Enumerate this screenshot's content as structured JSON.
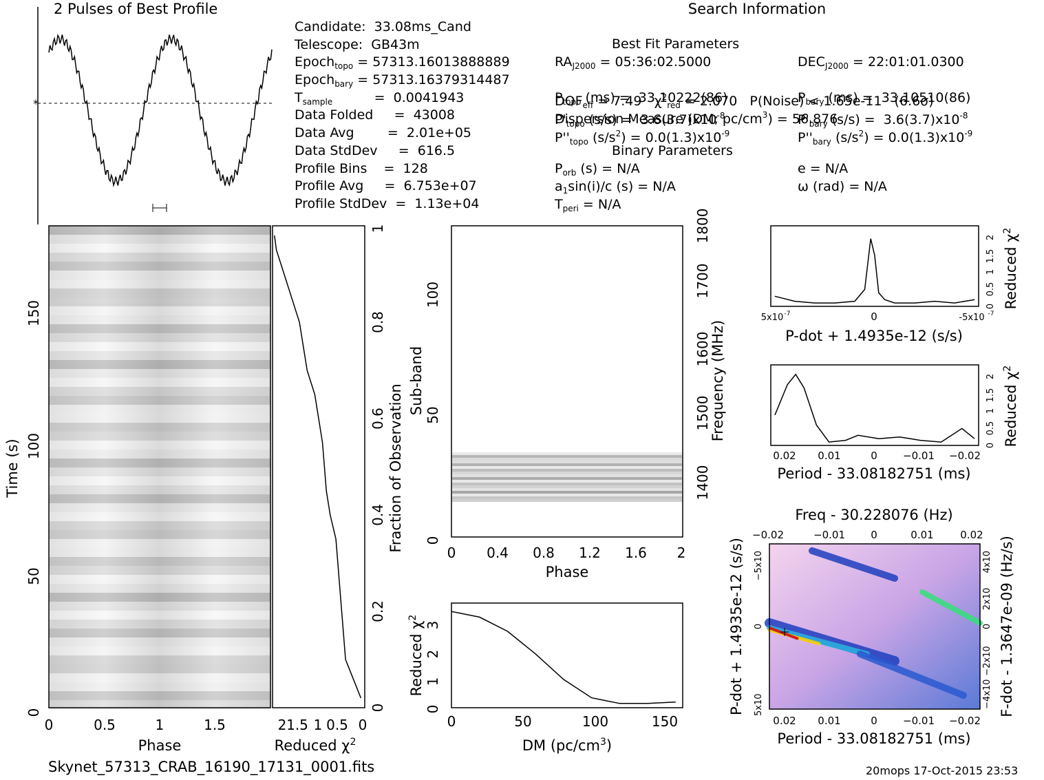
{
  "profile_title": "2 Pulses of Best Profile",
  "search_info_title": "Search Information",
  "best_fit_title": "Best Fit Parameters",
  "binary_title": "Binary Parameters",
  "left_info": [
    [
      "Candidate:  33.08ms_Cand"
    ],
    [
      "Telescope:  GB43m"
    ],
    [
      "Epoch",
      "topo",
      " = 57313.16013888889"
    ],
    [
      "Epoch",
      "bary",
      " = 57313.16379314487"
    ],
    [
      "T",
      "sample",
      "          =  0.0041943"
    ],
    [
      "Data Folded     =  43008"
    ],
    [
      "Data Avg        =  2.01e+05"
    ],
    [
      "Data StdDev     =  616.5"
    ],
    [
      "Profile Bins    =  128"
    ],
    [
      "Profile Avg     =  6.753e+07"
    ],
    [
      "Profile StdDev  =  1.13e+04"
    ]
  ],
  "ra": "RA",
  "ra_sub": "J2000",
  "ra_val": " = 05:36:02.5000",
  "dec": "DEC",
  "dec_sub": "J2000",
  "dec_val": " = 22:01:01.0300",
  "dof_line": "DOF",
  "dof_sub": "eff",
  "dof_val": " = 7.49   χ",
  "chi_sup": "2",
  "chi_sub": "red",
  "chi_val": " = 2.070   P(Noise) < 1.65e-11   (6.6σ)",
  "dm_line": "Dispersion Measure (DM; pc/cm",
  "dm_sup": "3",
  "dm_val": ") = 56.876",
  "ptopo": [
    "P",
    "topo",
    " (ms) =  33.10222(86)"
  ],
  "pbary": [
    "P",
    "bary",
    " (ms) =  33.10510(86)"
  ],
  "pdtopo": [
    "P'",
    "topo",
    " (s/s) =  3.6(3.7)x10",
    "-8"
  ],
  "pdbary": [
    "P'",
    "bary",
    " (s/s) =  3.6(3.7)x10",
    "-8"
  ],
  "pddtopo": [
    "P''",
    "topo",
    " (s/s",
    "2",
    ") = 0.0(1.3)x10",
    "-9"
  ],
  "pddbary": [
    "P''",
    "bary",
    " (s/s",
    "2",
    ") = 0.0(1.3)x10",
    "-9"
  ],
  "porb": [
    "P",
    "orb",
    " (s) = N/A"
  ],
  "ecc": "e = N/A",
  "a1": [
    "a",
    "1",
    "sin(i)/c (s) = N/A"
  ],
  "omega": "ω (rad) = N/A",
  "tperi": [
    "T",
    "peri",
    " = N/A"
  ],
  "footer_left": "Skynet_57313_CRAB_16190_17131_0001.fits",
  "footer_right": "20mops 17-Oct-2015 23:53",
  "labels": {
    "time_axis": "Time (s)",
    "phase": "Phase",
    "reduced_chi2": "Reduced χ",
    "chi2_sup": "2",
    "fraction_obs": "Fraction of Observation",
    "sub_band": "Sub-band",
    "frequency": "Frequency (MHz)",
    "dm_axis": "DM (pc/cm",
    "pdot_axis": "P-dot + 1.4935e-12 (s/s)",
    "period_axis": "Period - 33.08182751 (ms)",
    "freq_axis": "Freq - 30.228076 (Hz)",
    "fdot_axis": "F-dot - 1.3647e-09 (Hz/s)"
  },
  "chart_data": [
    {
      "type": "line",
      "title": "2 Pulses of Best Profile",
      "x": [
        0,
        0.1,
        0.2,
        0.3,
        0.4,
        0.5,
        0.6,
        0.7,
        0.8,
        0.9,
        1.0,
        1.1,
        1.2,
        1.3,
        1.4,
        1.5,
        1.6,
        1.7,
        1.8,
        1.9,
        2.0
      ],
      "values": [
        0.75,
        0.95,
        0.9,
        0.7,
        0.35,
        0.1,
        0.0,
        0.08,
        0.35,
        0.72,
        0.76,
        0.96,
        0.9,
        0.7,
        0.35,
        0.1,
        0.0,
        0.08,
        0.35,
        0.72,
        0.76
      ]
    },
    {
      "type": "line",
      "name": "reduced chi2 vs fraction of observation",
      "xlabel": "Reduced χ2",
      "ylabel": "Fraction of Observation",
      "xlim": [
        2.4,
        0
      ],
      "ylim": [
        0,
        1
      ],
      "x": [
        0.1,
        0.5,
        0.6,
        0.7,
        0.75,
        0.9,
        1.0,
        1.05,
        1.1,
        1.2,
        1.3,
        1.5,
        1.7,
        2.1,
        2.3,
        2.35
      ],
      "y": [
        0.02,
        0.1,
        0.2,
        0.3,
        0.35,
        0.4,
        0.45,
        0.5,
        0.55,
        0.6,
        0.65,
        0.7,
        0.8,
        0.9,
        0.95,
        0.98
      ]
    },
    {
      "type": "line",
      "xlabel": "DM (pc/cm3)",
      "ylabel": "Reduced χ2",
      "xlim": [
        0,
        160
      ],
      "ylim": [
        0,
        3.6
      ],
      "x": [
        0,
        20,
        40,
        60,
        80,
        100,
        120,
        140,
        160
      ],
      "y": [
        3.4,
        3.2,
        2.7,
        1.9,
        1.0,
        0.35,
        0.15,
        0.15,
        0.2
      ]
    },
    {
      "type": "line",
      "xlabel": "P-dot + 1.4935e-12 (s/s)",
      "ylabel": "Reduced χ2",
      "xticks": [
        "5x10-7",
        "0",
        "-5x10-7"
      ],
      "ylim": [
        0,
        2.3
      ],
      "x": [
        5,
        4,
        3,
        2,
        1,
        0.5,
        0.2,
        0,
        -0.2,
        -0.5,
        -1,
        -2,
        -3,
        -4,
        -5
      ],
      "y": [
        0.3,
        0.15,
        0.1,
        0.1,
        0.15,
        0.5,
        2.0,
        1.5,
        0.4,
        0.2,
        0.1,
        0.1,
        0.15,
        0.1,
        0.2
      ]
    },
    {
      "type": "line",
      "xlabel": "Period - 33.08182751 (ms)",
      "ylabel": "Reduced χ2",
      "xlim": [
        0.025,
        -0.025
      ],
      "ylim": [
        0,
        2.3
      ],
      "x": [
        0.025,
        0.022,
        0.02,
        0.018,
        0.015,
        0.012,
        0.008,
        0.005,
        0.0,
        -0.005,
        -0.01,
        -0.015,
        -0.02,
        -0.023
      ],
      "y": [
        0.9,
        1.8,
        2.1,
        1.7,
        0.6,
        0.1,
        0.15,
        0.3,
        0.2,
        0.25,
        0.15,
        0.1,
        0.5,
        0.2
      ]
    }
  ]
}
